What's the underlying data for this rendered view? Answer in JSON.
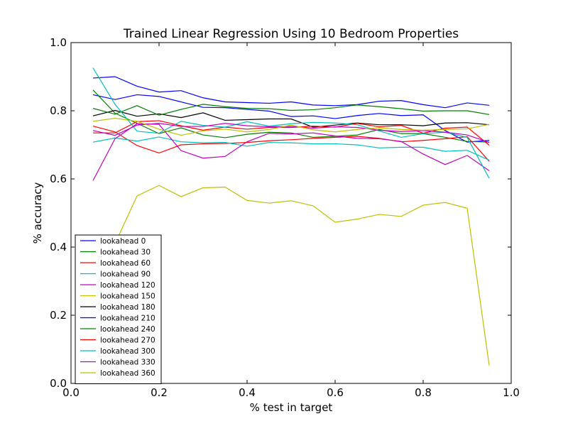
{
  "chart_data": {
    "type": "line",
    "title": "Trained Linear Regression Using 10 Bedroom Properties",
    "xlabel": "% test in target",
    "ylabel": "% accuracy",
    "xlim": [
      0.0,
      1.0
    ],
    "ylim": [
      0.0,
      1.0
    ],
    "x_ticks": [
      "0.0",
      "0.2",
      "0.4",
      "0.6",
      "0.8",
      "1.0"
    ],
    "y_ticks": [
      "0.0",
      "0.2",
      "0.4",
      "0.6",
      "0.8",
      "1.0"
    ],
    "grid": false,
    "legend_position": "lower-left",
    "x": [
      0.05,
      0.1,
      0.15,
      0.2,
      0.25,
      0.3,
      0.35,
      0.4,
      0.45,
      0.5,
      0.55,
      0.6,
      0.65,
      0.7,
      0.75,
      0.8,
      0.85,
      0.9,
      0.95
    ],
    "series": [
      {
        "name": "lookahead 0",
        "color": "#0000ff",
        "values": [
          0.847,
          0.833,
          0.847,
          0.842,
          0.826,
          0.81,
          0.809,
          0.804,
          0.799,
          0.783,
          0.785,
          0.777,
          0.786,
          0.792,
          0.786,
          0.788,
          0.742,
          0.708,
          0.713
        ]
      },
      {
        "name": "lookahead 30",
        "color": "#008000",
        "values": [
          0.861,
          0.793,
          0.763,
          0.733,
          0.75,
          0.729,
          0.721,
          0.731,
          0.737,
          0.735,
          0.722,
          0.725,
          0.729,
          0.745,
          0.733,
          0.733,
          0.722,
          0.71,
          0.708
        ]
      },
      {
        "name": "lookahead 60",
        "color": "#ff0000",
        "values": [
          0.755,
          0.738,
          0.698,
          0.676,
          0.7,
          0.703,
          0.704,
          0.707,
          0.712,
          0.715,
          0.719,
          0.722,
          0.725,
          0.719,
          0.709,
          0.713,
          0.718,
          0.724,
          0.652
        ]
      },
      {
        "name": "lookahead 90",
        "color": "#00bfbf",
        "values": [
          0.708,
          0.72,
          0.711,
          0.723,
          0.709,
          0.706,
          0.707,
          0.696,
          0.707,
          0.706,
          0.703,
          0.703,
          0.7,
          0.691,
          0.693,
          0.693,
          0.681,
          0.684,
          0.655
        ]
      },
      {
        "name": "lookahead 120",
        "color": "#bf00bf",
        "values": [
          0.595,
          0.718,
          0.762,
          0.76,
          0.683,
          0.661,
          0.666,
          0.709,
          0.734,
          0.732,
          0.735,
          0.726,
          0.719,
          0.718,
          0.71,
          0.673,
          0.642,
          0.669,
          0.624
        ]
      },
      {
        "name": "lookahead 150",
        "color": "#bfbf00",
        "values": [
          0.0,
          0.41,
          0.55,
          0.581,
          0.548,
          0.574,
          0.576,
          0.537,
          0.529,
          0.536,
          0.521,
          0.473,
          0.482,
          0.496,
          0.49,
          0.523,
          0.531,
          0.514,
          0.053
        ]
      },
      {
        "name": "lookahead 180",
        "color": "#000000",
        "values": [
          0.785,
          0.801,
          0.784,
          0.791,
          0.78,
          0.794,
          0.772,
          0.774,
          0.776,
          0.776,
          0.752,
          0.758,
          0.764,
          0.759,
          0.759,
          0.756,
          0.764,
          0.765,
          0.759
        ]
      },
      {
        "name": "lookahead 210",
        "color": "#0000ff",
        "values": [
          0.896,
          0.9,
          0.872,
          0.855,
          0.859,
          0.838,
          0.826,
          0.824,
          0.822,
          0.826,
          0.817,
          0.815,
          0.818,
          0.828,
          0.83,
          0.818,
          0.809,
          0.823,
          0.816
        ]
      },
      {
        "name": "lookahead 240",
        "color": "#008000",
        "values": [
          0.807,
          0.79,
          0.815,
          0.787,
          0.804,
          0.819,
          0.812,
          0.807,
          0.806,
          0.801,
          0.803,
          0.809,
          0.817,
          0.812,
          0.806,
          0.799,
          0.8,
          0.8,
          0.789
        ]
      },
      {
        "name": "lookahead 270",
        "color": "#ff0000",
        "values": [
          0.735,
          0.735,
          0.768,
          0.771,
          0.756,
          0.743,
          0.752,
          0.746,
          0.751,
          0.751,
          0.755,
          0.752,
          0.763,
          0.753,
          0.757,
          0.734,
          0.749,
          0.752,
          0.699
        ]
      },
      {
        "name": "lookahead 300",
        "color": "#00bfbf",
        "values": [
          0.926,
          0.819,
          0.74,
          0.734,
          0.769,
          0.757,
          0.752,
          0.768,
          0.755,
          0.762,
          0.766,
          0.764,
          0.759,
          0.741,
          0.722,
          0.733,
          0.737,
          0.722,
          0.602
        ]
      },
      {
        "name": "lookahead 330",
        "color": "#bf00bf",
        "values": [
          0.742,
          0.728,
          0.758,
          0.763,
          0.754,
          0.754,
          0.763,
          0.756,
          0.753,
          0.754,
          0.749,
          0.753,
          0.751,
          0.743,
          0.739,
          0.742,
          0.737,
          0.729,
          0.707
        ]
      },
      {
        "name": "lookahead 360",
        "color": "#bfbf00",
        "values": [
          0.769,
          0.778,
          0.769,
          0.746,
          0.728,
          0.741,
          0.746,
          0.738,
          0.745,
          0.758,
          0.744,
          0.738,
          0.745,
          0.75,
          0.745,
          0.743,
          0.745,
          0.747,
          0.76
        ]
      }
    ]
  }
}
